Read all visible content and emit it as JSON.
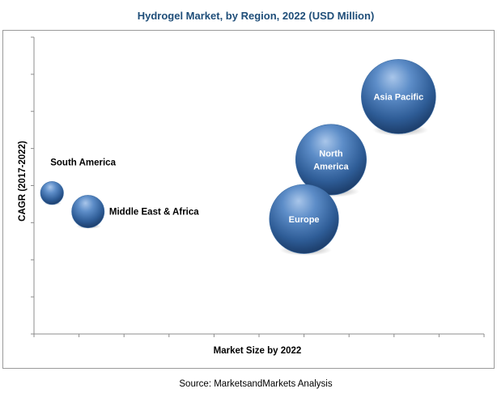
{
  "chart_data": {
    "type": "scatter",
    "title": "Hydrogel Market, by Region, 2022 (USD Million)",
    "xlabel": "Market Size by 2022",
    "ylabel": "CAGR (2017-2022)",
    "xlim": [
      0,
      10
    ],
    "ylim": [
      0,
      8
    ],
    "x_ticks": 10,
    "y_ticks": 8,
    "grid": false,
    "bubble_color": "#3f6fa6",
    "series": [
      {
        "points": [
          {
            "label": "South America",
            "label_lines": [
              "South  America"
            ],
            "label_position": "above-right",
            "x": 0.4,
            "y": 3.8,
            "size": 0.5
          },
          {
            "label": "Middle East & Africa",
            "label_lines": [
              "Middle East & Africa"
            ],
            "label_position": "right",
            "x": 1.2,
            "y": 3.3,
            "size": 1.0
          },
          {
            "label": "Europe",
            "label_lines": [
              "Europe"
            ],
            "label_position": "inside",
            "x": 6.0,
            "y": 3.1,
            "size": 4.5
          },
          {
            "label": "North America",
            "label_lines": [
              "North",
              "America"
            ],
            "label_position": "inside",
            "x": 6.6,
            "y": 4.7,
            "size": 4.7
          },
          {
            "label": "Asia Pacific",
            "label_lines": [
              "Asia Pacific"
            ],
            "label_position": "inside",
            "x": 8.1,
            "y": 6.4,
            "size": 5.2
          }
        ]
      }
    ]
  },
  "source": "Source: MarketsandMarkets Analysis"
}
